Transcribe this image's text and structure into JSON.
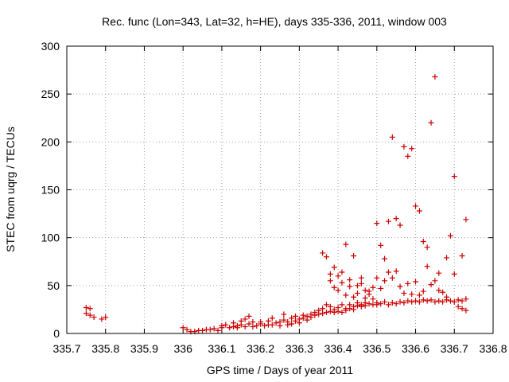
{
  "chart_data": {
    "type": "scatter",
    "title": "Rec. func (Lon=343, Lat=32, h=HE), days 335-336, 2011, window 003",
    "xlabel": "GPS time / Days of year 2011",
    "ylabel": "STEC from uqrg / TECUs",
    "xlim": [
      335.7,
      336.8
    ],
    "ylim": [
      0,
      300
    ],
    "xticks": [
      "335.7",
      "335.8",
      "335.9",
      "336",
      "336.1",
      "336.2",
      "336.3",
      "336.4",
      "336.5",
      "336.6",
      "336.7",
      "336.8"
    ],
    "yticks": [
      "0",
      "50",
      "100",
      "150",
      "200",
      "250",
      "300"
    ],
    "grid": true,
    "marker": "+",
    "color": "#cc0000",
    "points": [
      [
        335.75,
        27
      ],
      [
        335.76,
        26
      ],
      [
        335.75,
        21
      ],
      [
        335.76,
        19
      ],
      [
        335.77,
        17
      ],
      [
        335.79,
        15
      ],
      [
        335.8,
        17
      ],
      [
        336.0,
        6
      ],
      [
        336.01,
        4
      ],
      [
        336.02,
        2
      ],
      [
        336.03,
        2
      ],
      [
        336.04,
        3
      ],
      [
        336.05,
        3
      ],
      [
        336.06,
        4
      ],
      [
        336.07,
        4
      ],
      [
        336.08,
        5
      ],
      [
        336.09,
        3
      ],
      [
        336.1,
        6
      ],
      [
        336.1,
        8
      ],
      [
        336.11,
        9
      ],
      [
        336.12,
        6
      ],
      [
        336.13,
        11
      ],
      [
        336.13,
        7
      ],
      [
        336.14,
        8
      ],
      [
        336.14,
        6
      ],
      [
        336.15,
        9
      ],
      [
        336.15,
        13
      ],
      [
        336.16,
        7
      ],
      [
        336.16,
        15
      ],
      [
        336.17,
        10
      ],
      [
        336.17,
        18
      ],
      [
        336.18,
        12
      ],
      [
        336.18,
        7
      ],
      [
        336.19,
        8
      ],
      [
        336.2,
        10
      ],
      [
        336.2,
        12
      ],
      [
        336.21,
        8
      ],
      [
        336.22,
        9
      ],
      [
        336.22,
        13
      ],
      [
        336.23,
        9
      ],
      [
        336.23,
        16
      ],
      [
        336.24,
        11
      ],
      [
        336.25,
        12
      ],
      [
        336.25,
        8
      ],
      [
        336.26,
        14
      ],
      [
        336.26,
        20
      ],
      [
        336.27,
        9
      ],
      [
        336.27,
        12
      ],
      [
        336.28,
        16
      ],
      [
        336.28,
        10
      ],
      [
        336.29,
        13
      ],
      [
        336.29,
        18
      ],
      [
        336.3,
        15
      ],
      [
        336.3,
        11
      ],
      [
        336.31,
        16
      ],
      [
        336.31,
        19
      ],
      [
        336.32,
        14
      ],
      [
        336.32,
        18
      ],
      [
        336.33,
        17
      ],
      [
        336.33,
        20
      ],
      [
        336.34,
        19
      ],
      [
        336.34,
        22
      ],
      [
        336.35,
        20
      ],
      [
        336.35,
        24
      ],
      [
        336.36,
        21
      ],
      [
        336.36,
        26
      ],
      [
        336.37,
        22
      ],
      [
        336.37,
        30
      ],
      [
        336.38,
        23
      ],
      [
        336.38,
        28
      ],
      [
        336.39,
        22
      ],
      [
        336.39,
        25
      ],
      [
        336.4,
        23
      ],
      [
        336.4,
        27
      ],
      [
        336.41,
        22
      ],
      [
        336.41,
        30
      ],
      [
        336.42,
        24
      ],
      [
        336.42,
        26
      ],
      [
        336.43,
        26
      ],
      [
        336.43,
        30
      ],
      [
        336.44,
        28
      ],
      [
        336.44,
        25
      ],
      [
        336.45,
        29
      ],
      [
        336.45,
        32
      ],
      [
        336.46,
        30
      ],
      [
        336.46,
        28
      ],
      [
        336.47,
        32
      ],
      [
        336.47,
        29
      ],
      [
        336.48,
        31
      ],
      [
        336.49,
        30
      ],
      [
        336.5,
        32
      ],
      [
        336.5,
        30
      ],
      [
        336.51,
        31
      ],
      [
        336.52,
        33
      ],
      [
        336.53,
        30
      ],
      [
        336.54,
        32
      ],
      [
        336.55,
        31
      ],
      [
        336.56,
        33
      ],
      [
        336.57,
        32
      ],
      [
        336.58,
        34
      ],
      [
        336.59,
        33
      ],
      [
        336.6,
        34
      ],
      [
        336.61,
        33
      ],
      [
        336.62,
        35
      ],
      [
        336.63,
        34
      ],
      [
        336.64,
        35
      ],
      [
        336.65,
        33
      ],
      [
        336.66,
        34
      ],
      [
        336.67,
        33
      ],
      [
        336.68,
        35
      ],
      [
        336.69,
        34
      ],
      [
        336.7,
        33
      ],
      [
        336.71,
        35
      ],
      [
        336.72,
        34
      ],
      [
        336.73,
        36
      ],
      [
        336.36,
        84
      ],
      [
        336.37,
        80
      ],
      [
        336.38,
        62
      ],
      [
        336.39,
        69
      ],
      [
        336.4,
        60
      ],
      [
        336.41,
        64
      ],
      [
        336.42,
        93
      ],
      [
        336.43,
        56
      ],
      [
        336.44,
        81
      ],
      [
        336.45,
        50
      ],
      [
        336.46,
        58
      ],
      [
        336.47,
        45
      ],
      [
        336.48,
        41
      ],
      [
        336.49,
        48
      ],
      [
        336.5,
        115
      ],
      [
        336.51,
        92
      ],
      [
        336.52,
        78
      ],
      [
        336.53,
        117
      ],
      [
        336.54,
        205
      ],
      [
        336.55,
        120
      ],
      [
        336.56,
        113
      ],
      [
        336.57,
        195
      ],
      [
        336.58,
        185
      ],
      [
        336.59,
        193
      ],
      [
        336.6,
        133
      ],
      [
        336.61,
        128
      ],
      [
        336.62,
        96
      ],
      [
        336.63,
        90
      ],
      [
        336.64,
        220
      ],
      [
        336.65,
        268
      ],
      [
        336.66,
        63
      ],
      [
        336.68,
        79
      ],
      [
        336.69,
        102
      ],
      [
        336.7,
        164
      ],
      [
        336.72,
        81
      ],
      [
        336.73,
        119
      ],
      [
        336.38,
        55
      ],
      [
        336.39,
        48
      ],
      [
        336.4,
        45
      ],
      [
        336.41,
        53
      ],
      [
        336.42,
        40
      ],
      [
        336.43,
        49
      ],
      [
        336.44,
        38
      ],
      [
        336.45,
        42
      ],
      [
        336.46,
        52
      ],
      [
        336.47,
        37
      ],
      [
        336.48,
        44
      ],
      [
        336.49,
        36
      ],
      [
        336.5,
        58
      ],
      [
        336.51,
        47
      ],
      [
        336.52,
        55
      ],
      [
        336.53,
        64
      ],
      [
        336.54,
        58
      ],
      [
        336.55,
        65
      ],
      [
        336.56,
        49
      ],
      [
        336.57,
        42
      ],
      [
        336.58,
        52
      ],
      [
        336.59,
        41
      ],
      [
        336.6,
        54
      ],
      [
        336.61,
        40
      ],
      [
        336.62,
        44
      ],
      [
        336.63,
        70
      ],
      [
        336.64,
        51
      ],
      [
        336.65,
        55
      ],
      [
        336.66,
        45
      ],
      [
        336.67,
        43
      ],
      [
        336.68,
        38
      ],
      [
        336.7,
        62
      ],
      [
        336.71,
        28
      ],
      [
        336.72,
        26
      ],
      [
        336.73,
        24
      ]
    ]
  }
}
